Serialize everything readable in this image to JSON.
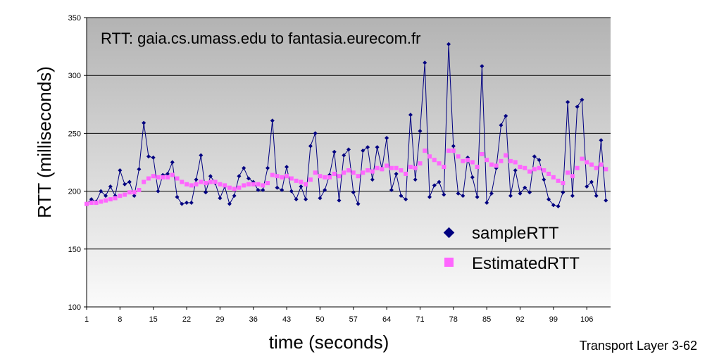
{
  "chart_data": {
    "type": "line",
    "title": "RTT: gaia.cs.umass.edu to fantasia.eurecom.fr",
    "xlabel": "time (seconds)",
    "ylabel": "RTT (milliseconds)",
    "ylim": [
      100,
      350
    ],
    "yticks": [
      100,
      150,
      200,
      250,
      300,
      350
    ],
    "xticks": [
      1,
      8,
      15,
      22,
      29,
      36,
      43,
      50,
      57,
      64,
      71,
      78,
      85,
      92,
      99,
      106
    ],
    "xlim": [
      1,
      111
    ],
    "grid": true,
    "legend_position": "lower-right",
    "series": [
      {
        "name": "sampleRTT",
        "marker": "diamond",
        "color": "#000080",
        "values": [
          189,
          193,
          191,
          200,
          196,
          204,
          196,
          218,
          206,
          208,
          196,
          219,
          259,
          230,
          229,
          200,
          214,
          215,
          225,
          195,
          189,
          190,
          190,
          210,
          231,
          199,
          213,
          207,
          194,
          204,
          189,
          196,
          213,
          220,
          211,
          208,
          201,
          201,
          220,
          261,
          203,
          201,
          221,
          200,
          193,
          204,
          193,
          239,
          250,
          194,
          201,
          214,
          234,
          192,
          231,
          236,
          199,
          189,
          235,
          238,
          210,
          238,
          219,
          246,
          201,
          215,
          196,
          193,
          266,
          210,
          252,
          311,
          195,
          205,
          208,
          197,
          327,
          239,
          198,
          196,
          229,
          212,
          195,
          308,
          190,
          198,
          220,
          257,
          265,
          196,
          218,
          198,
          203,
          199,
          230,
          227,
          210,
          193,
          188,
          187,
          199,
          277,
          196,
          273,
          279,
          204,
          208,
          196,
          244,
          192
        ]
      },
      {
        "name": "EstimatedRTT",
        "marker": "square",
        "color": "#FF66FF",
        "values": [
          189,
          190,
          190,
          191,
          192,
          193,
          194,
          196,
          197,
          199,
          199,
          201,
          208,
          211,
          213,
          212,
          212,
          212,
          214,
          211,
          208,
          206,
          205,
          206,
          208,
          207,
          208,
          208,
          206,
          205,
          203,
          202,
          203,
          205,
          206,
          206,
          206,
          205,
          207,
          214,
          213,
          212,
          213,
          211,
          209,
          208,
          206,
          210,
          216,
          213,
          212,
          212,
          215,
          213,
          216,
          218,
          216,
          213,
          216,
          218,
          217,
          220,
          219,
          222,
          220,
          220,
          218,
          215,
          221,
          220,
          224,
          235,
          230,
          227,
          224,
          221,
          235,
          235,
          230,
          226,
          227,
          225,
          221,
          232,
          227,
          223,
          222,
          226,
          231,
          226,
          225,
          221,
          220,
          217,
          219,
          220,
          218,
          215,
          212,
          209,
          207,
          216,
          213,
          220,
          228,
          225,
          223,
          220,
          223,
          219
        ]
      }
    ]
  },
  "footer": {
    "text": "Transport Layer 3-62"
  }
}
